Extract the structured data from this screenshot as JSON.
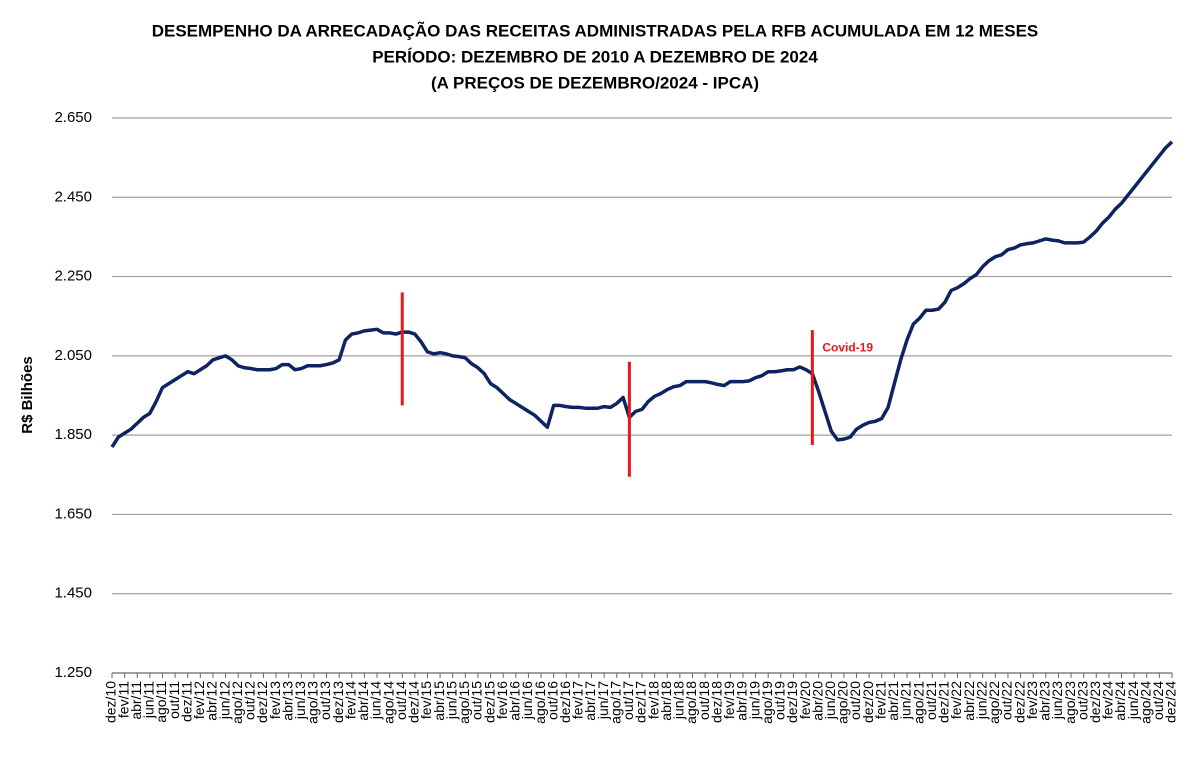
{
  "chart_data": {
    "type": "line",
    "title": [
      "DESEMPENHO DA ARRECADAÇÃO DAS RECEITAS ADMINISTRADAS PELA RFB ACUMULADA EM 12 MESES",
      "PERÍODO: DEZEMBRO DE 2010 A DEZEMBRO DE 2024",
      "(A PREÇOS DE DEZEMBRO/2024 - IPCA)"
    ],
    "y_label": "R$ Bilhões",
    "categories": [
      "dez/10",
      null,
      "fev/11",
      null,
      "abr/11",
      null,
      "jun/11",
      null,
      "ago/11",
      null,
      "out/11",
      null,
      "dez/11",
      null,
      "fev/12",
      null,
      "abr/12",
      null,
      "jun/12",
      null,
      "ago/12",
      null,
      "out/12",
      null,
      "dez/12",
      null,
      "fev/13",
      null,
      "abr/13",
      null,
      "jun/13",
      null,
      "ago/13",
      null,
      "out/13",
      null,
      "dez/13",
      null,
      "fev/14",
      null,
      "abr/14",
      null,
      "jun/14",
      null,
      "ago/14",
      null,
      "out/14",
      null,
      "dez/14",
      null,
      "fev/15",
      null,
      "abr/15",
      null,
      "jun/15",
      null,
      "ago/15",
      null,
      "out/15",
      null,
      "dez/15",
      null,
      "fev/16",
      null,
      "abr/16",
      null,
      "jun/16",
      null,
      "ago/16",
      null,
      "out/16",
      null,
      "dez/16",
      null,
      "fev/17",
      null,
      "abr/17",
      null,
      "jun/17",
      null,
      "ago/17",
      null,
      "out/17",
      null,
      "dez/17",
      null,
      "fev/18",
      null,
      "abr/18",
      null,
      "jun/18",
      null,
      "ago/18",
      null,
      "out/18",
      null,
      "dez/18",
      null,
      "fev/19",
      null,
      "abr/19",
      null,
      "jun/19",
      null,
      "ago/19",
      null,
      "out/19",
      null,
      "dez/19",
      null,
      "fev/20",
      null,
      "abr/20",
      null,
      "jun/20",
      null,
      "ago/20",
      null,
      "out/20",
      null,
      "dez/20",
      null,
      "fev/21",
      null,
      "abr/21",
      null,
      "jun/21",
      null,
      "ago/21",
      null,
      "out/21",
      null,
      "dez/21",
      null,
      "fev/22",
      null,
      "abr/22",
      null,
      "jun/22",
      null,
      "ago/22",
      null,
      "out/22",
      null,
      "dez/22",
      null,
      "fev/23",
      null,
      "abr/23",
      null,
      "jun/23",
      null,
      "ago/23",
      null,
      "out/23",
      null,
      "dez/23",
      null,
      "fev/24",
      null,
      "abr/24",
      null,
      "jun/24",
      null,
      "ago/24",
      null,
      "out/24",
      null,
      "dez/24"
    ],
    "values": [
      1820,
      1845,
      1855,
      1865,
      1880,
      1895,
      1905,
      1935,
      1970,
      1980,
      1990,
      2000,
      2010,
      2005,
      2015,
      2025,
      2040,
      2045,
      2050,
      2040,
      2025,
      2020,
      2018,
      2015,
      2015,
      2015,
      2018,
      2028,
      2028,
      2015,
      2018,
      2025,
      2025,
      2025,
      2028,
      2032,
      2040,
      2090,
      2105,
      2108,
      2113,
      2115,
      2117,
      2108,
      2108,
      2105,
      2110,
      2110,
      2105,
      2085,
      2060,
      2055,
      2058,
      2055,
      2050,
      2048,
      2045,
      2030,
      2020,
      2005,
      1980,
      1970,
      1955,
      1940,
      1930,
      1920,
      1910,
      1900,
      1885,
      1870,
      1925,
      1925,
      1922,
      1920,
      1920,
      1918,
      1918,
      1918,
      1922,
      1920,
      1930,
      1945,
      1895,
      1910,
      1915,
      1935,
      1948,
      1955,
      1965,
      1972,
      1975,
      1985,
      1985,
      1985,
      1985,
      1982,
      1978,
      1975,
      1985,
      1985,
      1985,
      1987,
      1995,
      2000,
      2010,
      2010,
      2012,
      2015,
      2015,
      2022,
      2015,
      2005,
      1960,
      1910,
      1860,
      1838,
      1840,
      1845,
      1865,
      1875,
      1882,
      1885,
      1892,
      1920,
      1980,
      2040,
      2090,
      2130,
      2145,
      2165,
      2165,
      2168,
      2185,
      2215,
      2222,
      2232,
      2245,
      2255,
      2275,
      2290,
      2300,
      2305,
      2318,
      2322,
      2330,
      2333,
      2335,
      2340,
      2345,
      2342,
      2340,
      2335,
      2335,
      2335,
      2337,
      2350,
      2365,
      2385,
      2400,
      2420,
      2435,
      2455,
      2475,
      2495,
      2515,
      2535,
      2555,
      2575,
      2590
    ],
    "color": "#0e2361",
    "ylim": [
      1250,
      2650
    ],
    "yticks": [
      {
        "value": 1250,
        "label": "1.250"
      },
      {
        "value": 1450,
        "label": "1.450"
      },
      {
        "value": 1650,
        "label": "1.650"
      },
      {
        "value": 1850,
        "label": "1.850"
      },
      {
        "value": 2050,
        "label": "2.050"
      },
      {
        "value": 2250,
        "label": "2.250"
      },
      {
        "value": 2450,
        "label": "2.450"
      },
      {
        "value": 2650,
        "label": "2.650"
      }
    ],
    "grid": true,
    "vlines": [
      {
        "x": 46,
        "y": [
          1925,
          2210
        ],
        "color": "#e8171b"
      },
      {
        "x": 82,
        "y": [
          1745,
          2035
        ],
        "color": "#e8171b"
      },
      {
        "x": 111,
        "y": [
          1825,
          2115
        ],
        "color": "#e8171b",
        "label": "Covid-19"
      }
    ]
  }
}
